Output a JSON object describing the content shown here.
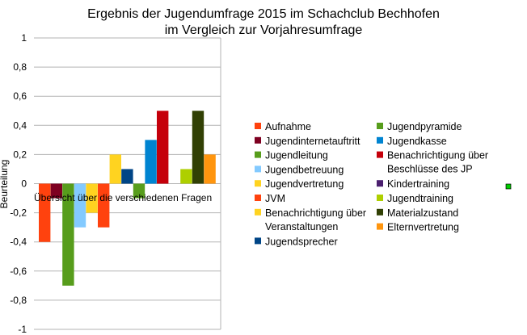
{
  "chart_data": {
    "type": "bar",
    "title": [
      "Ergebnis der Jugendumfrage 2015 im Schachclub Bechhofen",
      "im Vergleich zur Vorjahresumfrage"
    ],
    "xlabel": "Übersicht über die verschiedenen Fragen",
    "ylabel": "Beurteilung",
    "ylim": [
      -1,
      1
    ],
    "yticks": [
      "1",
      "0,8",
      "0,6",
      "0,4",
      "0,2",
      "0",
      "-0,2",
      "-0,4",
      "-0,6",
      "-0,8",
      "-1"
    ],
    "grid": true,
    "legend_position": "right",
    "series": [
      {
        "name": "Aufnahme",
        "value": -0.4,
        "color": "#ff420e"
      },
      {
        "name": "Jugendinternetauftritt",
        "value": -0.1,
        "color": "#7e0021"
      },
      {
        "name": "Jugendleitung",
        "value": -0.7,
        "color": "#579d1c"
      },
      {
        "name": "Jugendbetreuung",
        "value": -0.3,
        "color": "#83caff"
      },
      {
        "name": "Jugendvertretung",
        "value": -0.2,
        "color": "#ffd320"
      },
      {
        "name": "JVM",
        "value": -0.3,
        "color": "#ff420e"
      },
      {
        "name": "Benachrichtigung über Veranstaltungen",
        "value": 0.2,
        "color": "#ffd320"
      },
      {
        "name": "Jugendsprecher",
        "value": 0.1,
        "color": "#004586"
      },
      {
        "name": "Jugendpyramide",
        "value": -0.1,
        "color": "#579d1c"
      },
      {
        "name": "Jugendkasse",
        "value": 0.3,
        "color": "#0084d1"
      },
      {
        "name": "Benachrichtigung über Beschlüsse des JP",
        "value": 0.5,
        "color": "#c5000b"
      },
      {
        "name": "Kindertraining",
        "value": 0,
        "color": "#4b1f6f"
      },
      {
        "name": "Jugendtraining",
        "value": 0.1,
        "color": "#aecf00"
      },
      {
        "name": "Materialzustand",
        "value": 0.5,
        "color": "#314004"
      },
      {
        "name": "Elternvertretung",
        "value": 0.2,
        "color": "#ff950e"
      }
    ],
    "legend_columns": [
      [
        [
          "Aufnahme"
        ],
        [
          "Jugendinternetauftritt"
        ],
        [
          "Jugendleitung"
        ],
        [
          "Jugendbetreuung"
        ],
        [
          "Jugendvertretung"
        ],
        [
          "JVM"
        ],
        [
          "Benachrichtigung über",
          "Veranstaltungen"
        ],
        [
          "Jugendsprecher"
        ]
      ],
      [
        [
          "Jugendpyramide"
        ],
        [
          "Jugendkasse"
        ],
        [
          "Benachrichtigung über",
          "Beschlüsse des JP"
        ],
        [
          "Kindertraining"
        ],
        [
          "Jugendtraining"
        ],
        [
          "Materialzustand"
        ],
        [
          "Elternvertretung"
        ]
      ]
    ],
    "legend_column_colors": [
      [
        "#ff420e",
        "#7e0021",
        "#579d1c",
        "#83caff",
        "#ffd320",
        "#ff420e",
        "#ffd320",
        "#004586"
      ],
      [
        "#579d1c",
        "#0084d1",
        "#c5000b",
        "#4b1f6f",
        "#aecf00",
        "#314004",
        "#ff950e"
      ]
    ],
    "colors": {
      "grid": "#b3b3b3",
      "marker": "#00cc00"
    }
  }
}
